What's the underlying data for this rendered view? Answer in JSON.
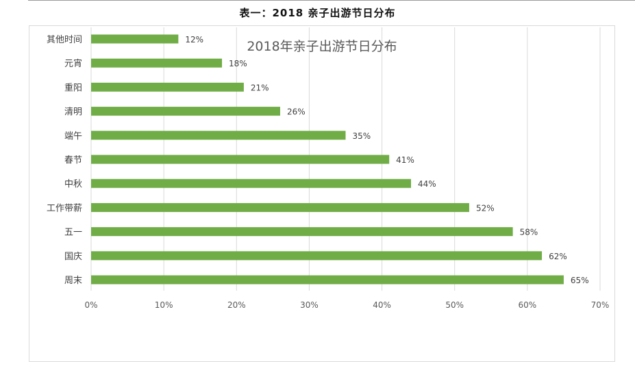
{
  "document": {
    "caption": "表一：2018 亲子出游节日分布"
  },
  "chart_data": {
    "type": "bar",
    "orientation": "horizontal",
    "title": "2018年亲子出游节日分布",
    "xlabel": "",
    "ylabel": "",
    "xlim": [
      0,
      70
    ],
    "x_ticks": [
      "0%",
      "10%",
      "20%",
      "30%",
      "40%",
      "50%",
      "60%",
      "70%"
    ],
    "grid": true,
    "legend": "none",
    "bar_color": "#70ad47",
    "categories": [
      "其他时间",
      "元宵",
      "重阳",
      "清明",
      "端午",
      "春节",
      "中秋",
      "工作带薪",
      "五一",
      "国庆",
      "周末"
    ],
    "values": [
      12,
      18,
      21,
      26,
      35,
      41,
      44,
      52,
      58,
      62,
      65
    ],
    "value_labels": [
      "12%",
      "18%",
      "21%",
      "26%",
      "35%",
      "41%",
      "44%",
      "52%",
      "58%",
      "62%",
      "65%"
    ]
  }
}
